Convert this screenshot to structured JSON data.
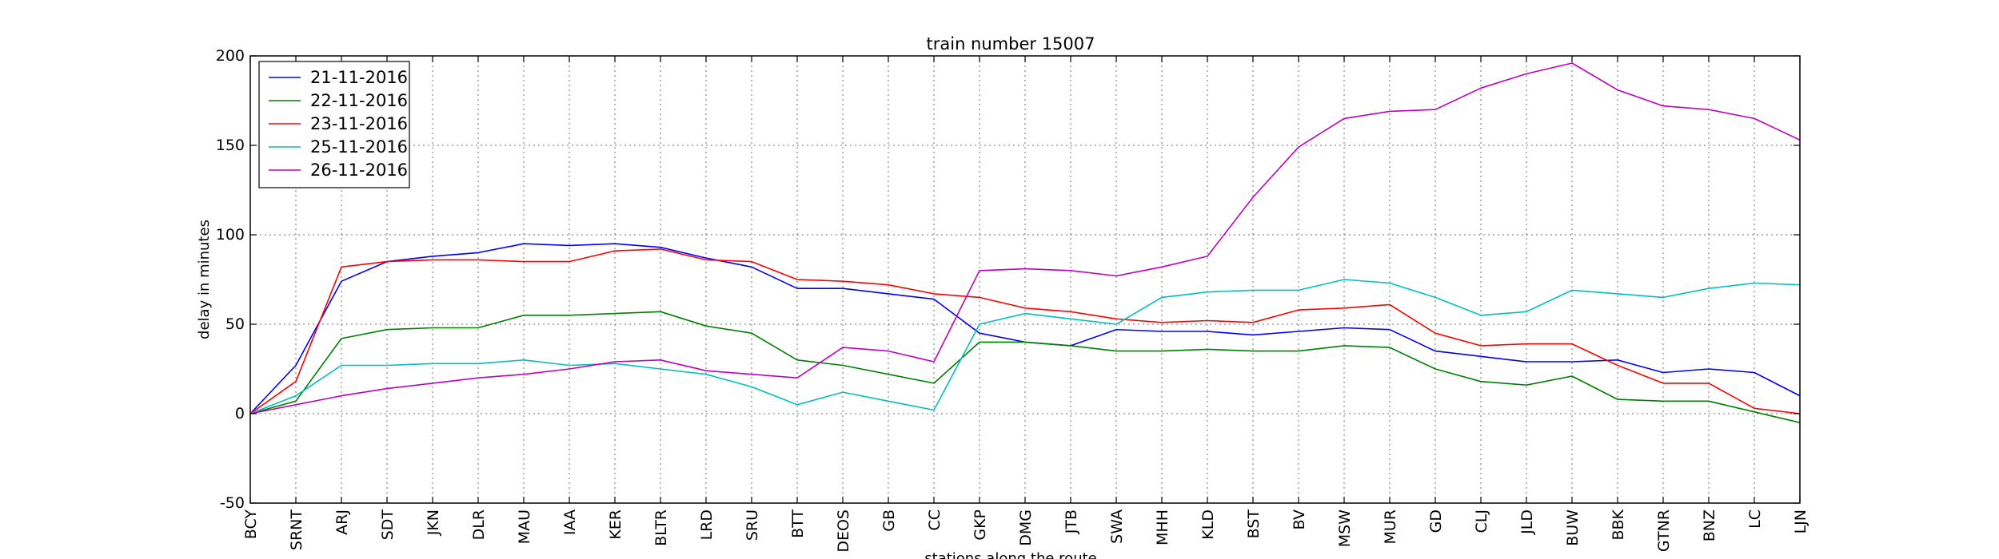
{
  "chart_data": {
    "type": "line",
    "title": "train number 15007",
    "xlabel": "stations along the route",
    "ylabel": "delay in minutes",
    "ylim": [
      -50,
      200
    ],
    "yticks": [
      -50,
      0,
      50,
      100,
      150,
      200
    ],
    "grid": true,
    "legend_position": "top-left",
    "categories": [
      "BCY",
      "SRNT",
      "ARJ",
      "SDT",
      "JKN",
      "DLR",
      "MAU",
      "IAA",
      "KER",
      "BLTR",
      "LRD",
      "SRU",
      "BTT",
      "DEOS",
      "GB",
      "CC",
      "GKP",
      "DMG",
      "JTB",
      "SWA",
      "MHH",
      "KLD",
      "BST",
      "BV",
      "MSW",
      "MUR",
      "GD",
      "CLJ",
      "JLD",
      "BUW",
      "BBK",
      "GTNR",
      "BNZ",
      "LC",
      "LJN"
    ],
    "series": [
      {
        "name": "21-11-2016",
        "color": "#0000ff",
        "values": [
          0,
          27,
          74,
          85,
          88,
          90,
          95,
          94,
          95,
          93,
          87,
          82,
          70,
          70,
          67,
          64,
          45,
          40,
          38,
          47,
          46,
          46,
          44,
          46,
          48,
          47,
          35,
          32,
          29,
          29,
          30,
          23,
          25,
          23,
          10
        ]
      },
      {
        "name": "22-11-2016",
        "color": "#008000",
        "values": [
          0,
          7,
          42,
          47,
          48,
          48,
          55,
          55,
          56,
          57,
          49,
          45,
          30,
          27,
          22,
          17,
          40,
          40,
          38,
          35,
          35,
          36,
          35,
          35,
          38,
          37,
          25,
          18,
          16,
          21,
          8,
          7,
          7,
          1,
          -5
        ]
      },
      {
        "name": "23-11-2016",
        "color": "#ff0000",
        "values": [
          0,
          18,
          82,
          85,
          86,
          86,
          85,
          85,
          91,
          92,
          86,
          85,
          75,
          74,
          72,
          67,
          65,
          59,
          57,
          53,
          51,
          52,
          51,
          58,
          59,
          61,
          45,
          38,
          39,
          39,
          27,
          17,
          17,
          3,
          0
        ]
      },
      {
        "name": "25-11-2016",
        "color": "#00bfbf",
        "values": [
          0,
          10,
          27,
          27,
          28,
          28,
          30,
          27,
          28,
          25,
          22,
          15,
          5,
          12,
          7,
          2,
          50,
          56,
          53,
          50,
          65,
          68,
          69,
          69,
          75,
          73,
          65,
          55,
          57,
          69,
          67,
          65,
          70,
          73,
          72
        ]
      },
      {
        "name": "26-11-2016",
        "color": "#bf00bf",
        "values": [
          0,
          5,
          10,
          14,
          17,
          20,
          22,
          25,
          29,
          30,
          24,
          22,
          20,
          37,
          35,
          29,
          80,
          81,
          80,
          77,
          82,
          88,
          121,
          149,
          165,
          169,
          170,
          182,
          190,
          196,
          181,
          172,
          170,
          165,
          153
        ]
      }
    ]
  }
}
